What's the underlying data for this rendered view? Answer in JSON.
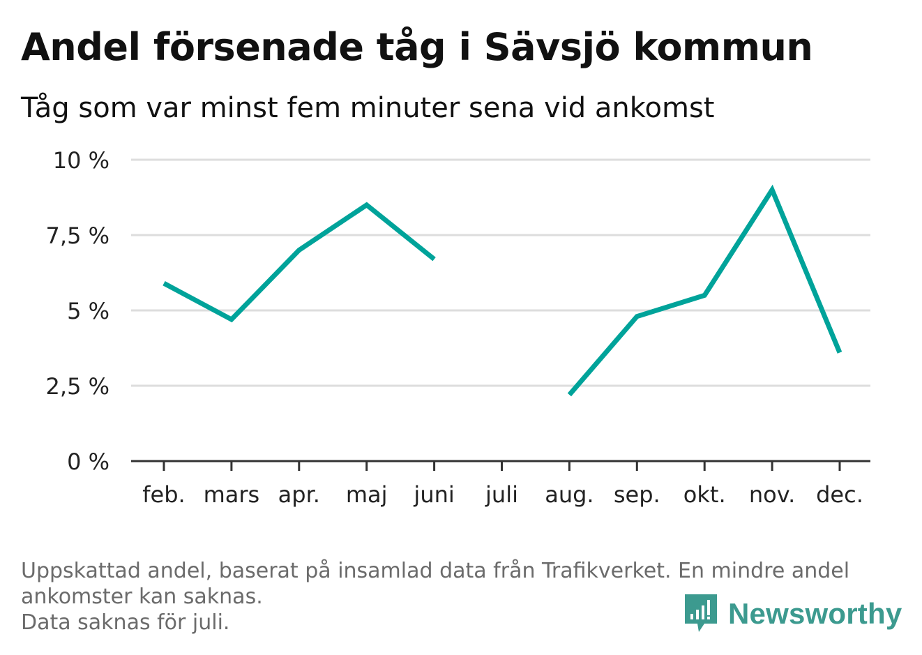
{
  "header": {
    "title": "Andel försenade tåg i Sävsjö kommun",
    "subtitle": "Tåg som var minst fem minuter sena vid ankomst"
  },
  "footnote": {
    "line1": "Uppskattad andel, baserat på insamlad data från Trafikverket. En mindre andel",
    "line2": "ankomster kan saknas.",
    "line3": "Data saknas för juli."
  },
  "brand": {
    "name": "Newsworthy",
    "icon": "newsworthy-logo-icon",
    "color": "#3c9a8f"
  },
  "chart_data": {
    "type": "line",
    "categories": [
      "feb.",
      "mars",
      "apr.",
      "maj",
      "juni",
      "juli",
      "aug.",
      "sep.",
      "okt.",
      "nov.",
      "dec."
    ],
    "series": [
      {
        "values": [
          5.9,
          4.7,
          7.0,
          8.5,
          6.7,
          null,
          2.2,
          4.8,
          5.5,
          9.0,
          3.6
        ]
      }
    ],
    "ylim": [
      0,
      10
    ],
    "yticks": [
      0,
      2.5,
      5,
      7.5,
      10
    ],
    "ytick_labels": [
      "0 %",
      "2,5 %",
      "5 %",
      "7,5 %",
      "10 %"
    ],
    "grid": true,
    "line_color": "#00a39a",
    "grid_color": "#dddddd",
    "axis_color": "#333333"
  }
}
